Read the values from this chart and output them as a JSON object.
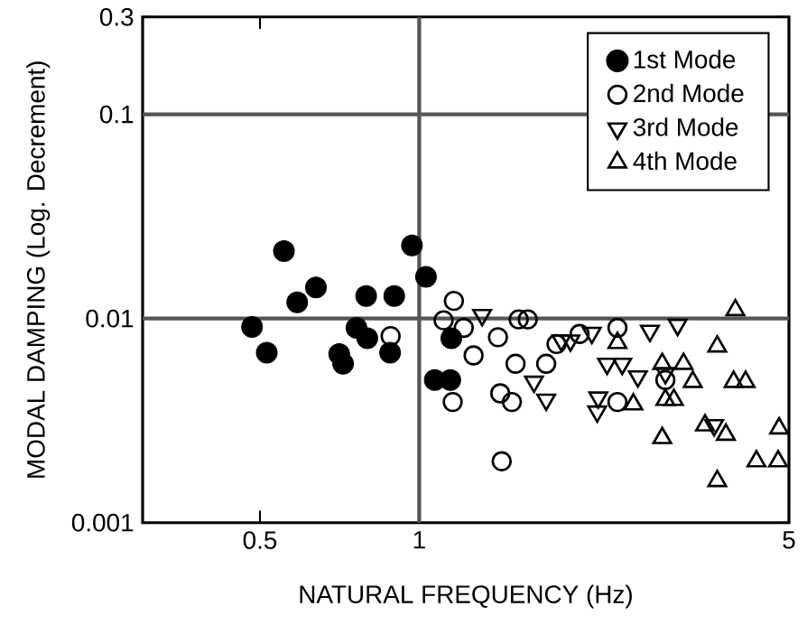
{
  "chart_data": {
    "type": "scatter",
    "xlabel": "NATURAL FREQUENCY  (Hz)",
    "ylabel": "MODAL DAMPING  (Log. Decrement)",
    "log": "xy",
    "xlim": [
      0.3,
      5
    ],
    "ylim": [
      0.001,
      0.3
    ],
    "xticks": [
      0.5,
      1,
      5
    ],
    "yticks": [
      0.001,
      0.01,
      0.1,
      0.3
    ],
    "legend": "top right",
    "ref_lines": [
      {
        "axis": "x",
        "value": 1
      },
      {
        "axis": "y",
        "value": 0.1
      },
      {
        "axis": "y",
        "value": 0.01
      }
    ],
    "series": [
      {
        "name": "1st Mode",
        "color": "#000000",
        "marker": "circle",
        "x": [
          0.483,
          0.515,
          0.555,
          0.588,
          0.638,
          0.706,
          0.718,
          0.761,
          0.794,
          0.798,
          0.881,
          0.897,
          0.969,
          1.03,
          1.07,
          1.145,
          1.15
        ],
        "values": [
          0.0091,
          0.0068,
          0.0214,
          0.012,
          0.0142,
          0.0067,
          0.006,
          0.009,
          0.0129,
          0.008,
          0.0068,
          0.0129,
          0.0228,
          0.016,
          0.005,
          0.005,
          0.008
        ]
      },
      {
        "name": "2nd Mode",
        "color": "#000000",
        "marker": "circle-open",
        "x": [
          0.883,
          1.112,
          1.163,
          1.214,
          1.267,
          1.409,
          1.423,
          1.497,
          1.521,
          1.542,
          1.604,
          1.738,
          1.818,
          2.01,
          2.37,
          2.37,
          2.92,
          1.432,
          1.157
        ],
        "values": [
          0.0082,
          0.0098,
          0.0122,
          0.009,
          0.0066,
          0.0081,
          0.0043,
          0.0039,
          0.006,
          0.0099,
          0.0099,
          0.006,
          0.0075,
          0.0084,
          0.009,
          0.0039,
          0.005,
          0.002,
          0.0039
        ]
      },
      {
        "name": "3rd Mode",
        "color": "#000000",
        "marker": "triangle-down",
        "x": [
          1.315,
          1.648,
          1.738,
          1.857,
          1.932,
          2.12,
          2.17,
          2.18,
          2.265,
          2.42,
          2.59,
          2.73,
          2.92,
          3.08,
          3.61
        ],
        "values": [
          0.0104,
          0.0049,
          0.004,
          0.0078,
          0.0078,
          0.0085,
          0.0035,
          0.0041,
          0.006,
          0.006,
          0.0052,
          0.0087,
          0.0054,
          0.0093,
          0.003
        ]
      },
      {
        "name": "4th Mode",
        "color": "#000000",
        "marker": "triangle",
        "x": [
          2.37,
          2.54,
          2.88,
          2.92,
          3.03,
          3.16,
          3.29,
          2.88,
          3.66,
          3.66,
          3.47,
          3.8,
          3.93,
          4.14,
          3.96,
          4.34,
          4.77,
          4.79
        ],
        "values": [
          0.0076,
          0.0038,
          0.006,
          0.004,
          0.004,
          0.006,
          0.0049,
          0.0026,
          0.0073,
          0.0016,
          0.003,
          0.0027,
          0.0049,
          0.0049,
          0.011,
          0.002,
          0.002,
          0.0029
        ]
      }
    ]
  }
}
